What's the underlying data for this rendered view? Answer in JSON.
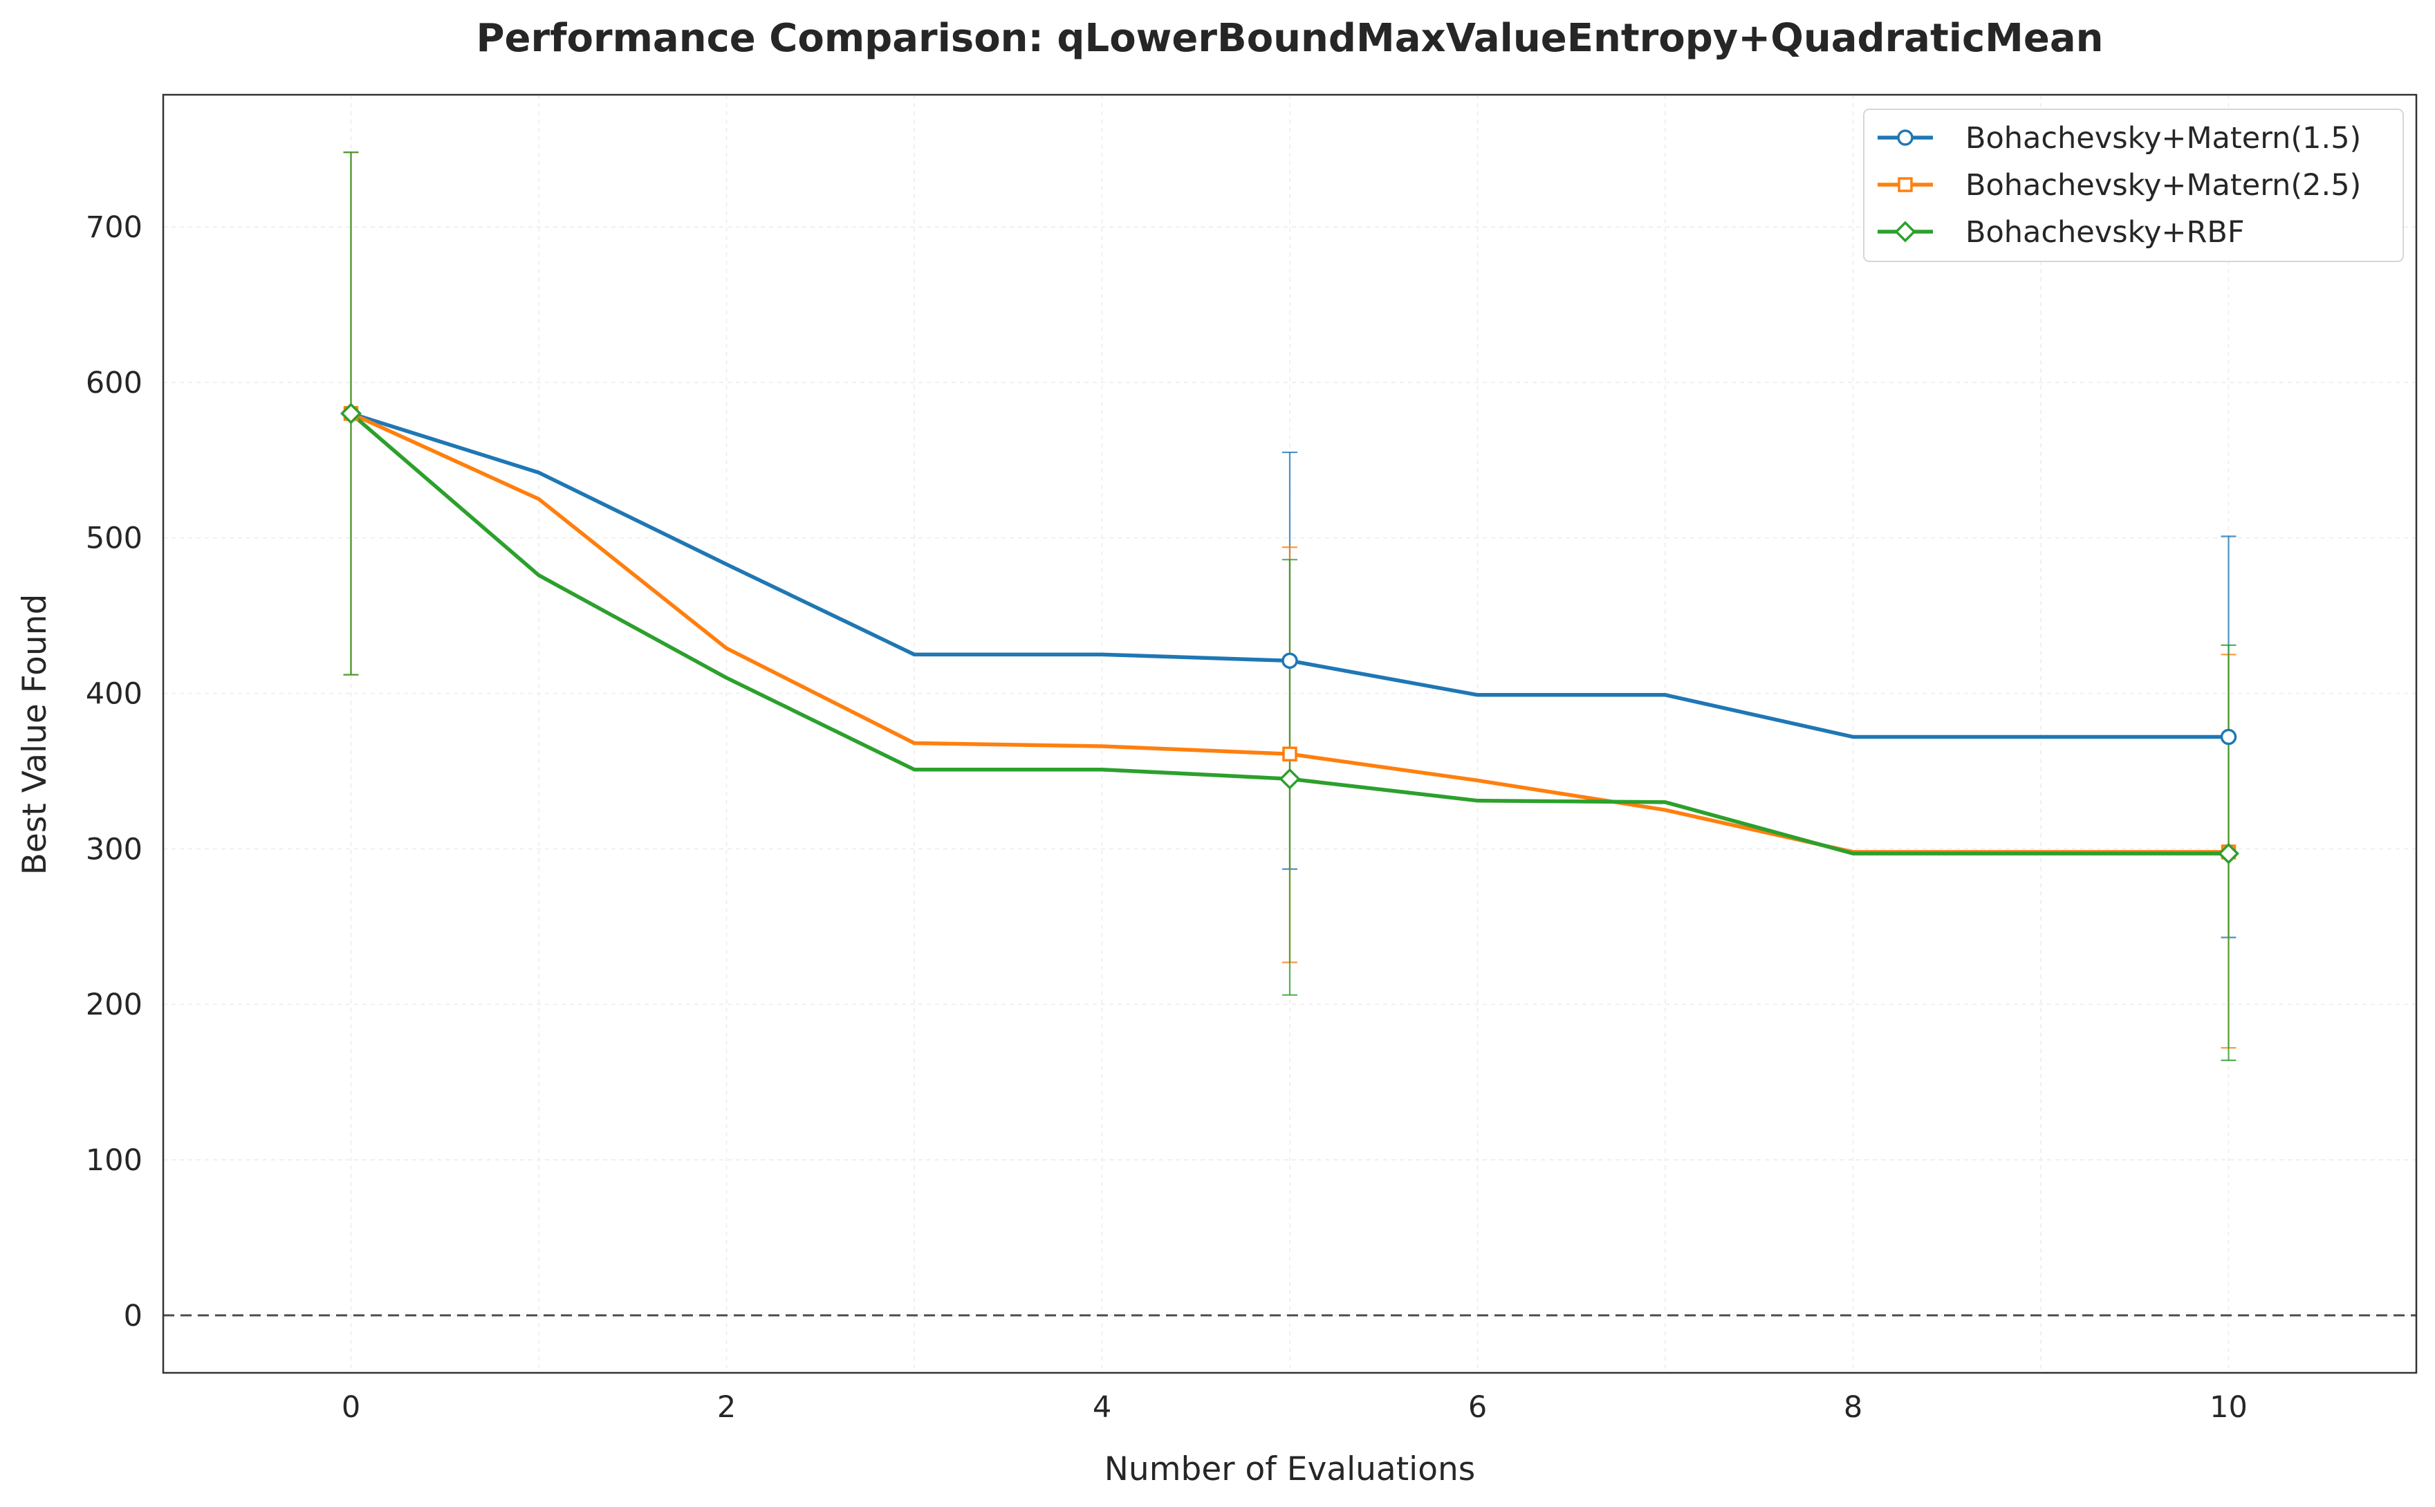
{
  "chart_data": {
    "type": "line",
    "title": "Performance Comparison: qLowerBoundMaxValueEntropy+QuadraticMean",
    "xlabel": "Number of Evaluations",
    "ylabel": "Best Value Found",
    "xlim": [
      -1,
      11
    ],
    "ylim": [
      -37,
      785
    ],
    "x_ticks": [
      0,
      2,
      4,
      6,
      8,
      10
    ],
    "y_ticks": [
      0,
      100,
      200,
      300,
      400,
      500,
      600,
      700
    ],
    "grid": true,
    "legend_position": "top-right",
    "reference_line": {
      "y": 0,
      "style": "dashed",
      "color": "#4d4d4d"
    },
    "x": [
      0,
      1,
      2,
      3,
      4,
      5,
      6,
      7,
      8,
      9,
      10
    ],
    "marker_x": [
      0,
      5,
      10
    ],
    "series": [
      {
        "name": "Bohachevsky+Matern(1.5)",
        "color": "#1f77b4",
        "marker": "circle",
        "values": [
          580,
          542,
          483,
          425,
          425,
          421,
          399,
          399,
          372,
          372,
          372
        ],
        "errors": [
          {
            "x": 0,
            "low": 412,
            "high": 748
          },
          {
            "x": 5,
            "low": 287,
            "high": 555
          },
          {
            "x": 10,
            "low": 243,
            "high": 501
          }
        ]
      },
      {
        "name": "Bohachevsky+Matern(2.5)",
        "color": "#ff7f0e",
        "marker": "square",
        "values": [
          580,
          525,
          429,
          368,
          366,
          361,
          344,
          325,
          298,
          298,
          298
        ],
        "errors": [
          {
            "x": 0,
            "low": 412,
            "high": 748
          },
          {
            "x": 5,
            "low": 227,
            "high": 494
          },
          {
            "x": 10,
            "low": 172,
            "high": 425
          }
        ]
      },
      {
        "name": "Bohachevsky+RBF",
        "color": "#2ca02c",
        "marker": "diamond",
        "values": [
          580,
          476,
          410,
          351,
          351,
          345,
          331,
          330,
          297,
          297,
          297
        ],
        "errors": [
          {
            "x": 0,
            "low": 412,
            "high": 748
          },
          {
            "x": 5,
            "low": 206,
            "high": 486
          },
          {
            "x": 10,
            "low": 164,
            "high": 431
          }
        ]
      }
    ]
  }
}
